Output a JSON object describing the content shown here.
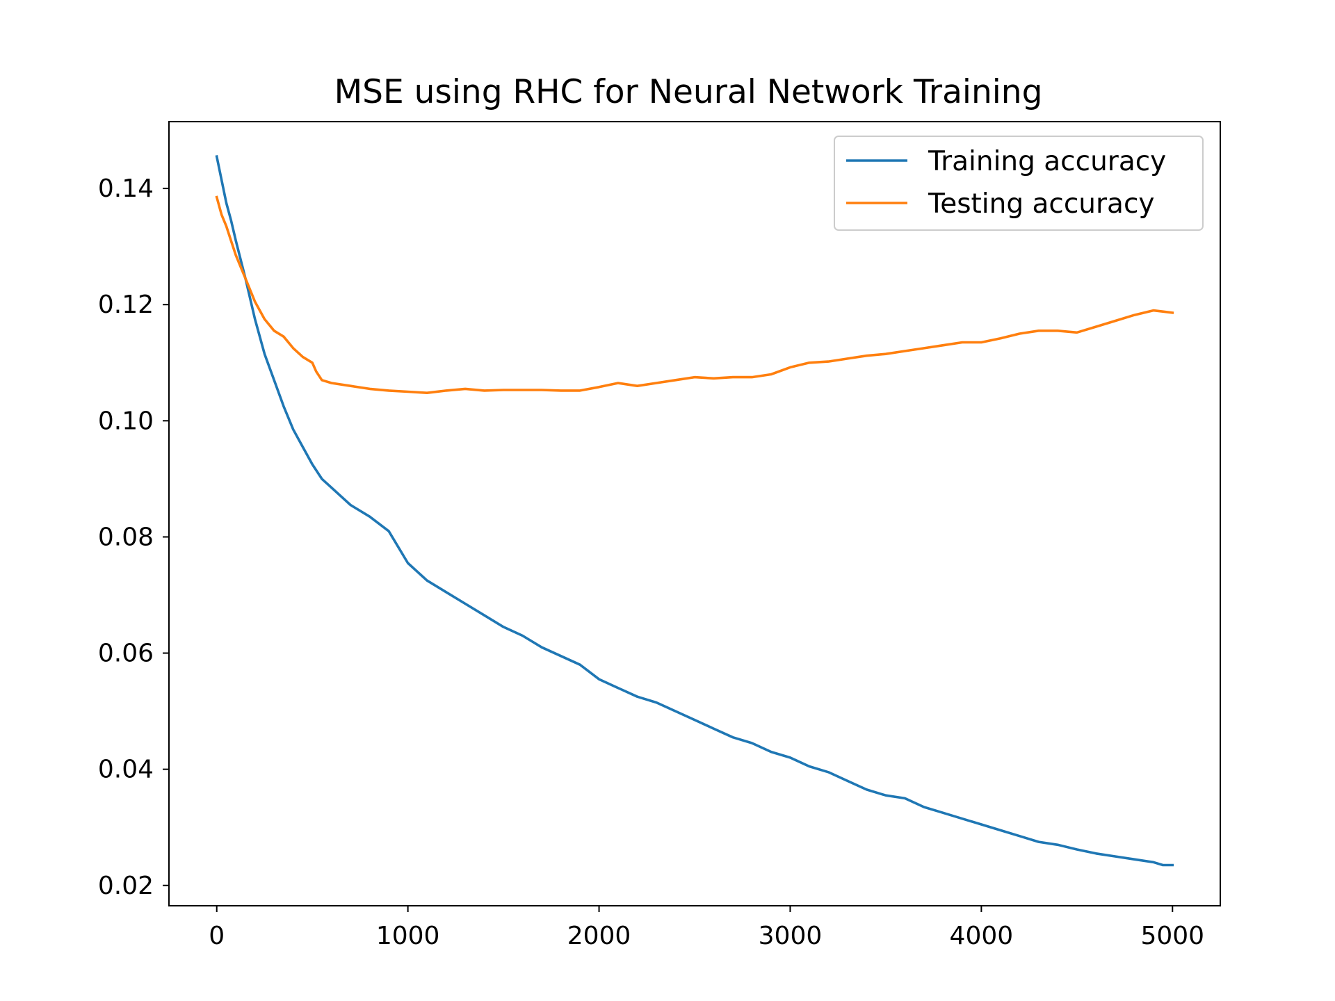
{
  "chart_data": {
    "type": "line",
    "title": "MSE using RHC for Neural Network Training",
    "xlabel": "",
    "ylabel": "",
    "xlim": [
      -250,
      5250
    ],
    "ylim": [
      0.0165,
      0.1515
    ],
    "xticks": [
      0,
      1000,
      2000,
      3000,
      4000,
      5000
    ],
    "xtick_labels": [
      "0",
      "1000",
      "2000",
      "3000",
      "4000",
      "5000"
    ],
    "yticks": [
      0.02,
      0.04,
      0.06,
      0.08,
      0.1,
      0.12,
      0.14
    ],
    "ytick_labels": [
      "0.02",
      "0.04",
      "0.06",
      "0.08",
      "0.10",
      "0.12",
      "0.14"
    ],
    "grid": false,
    "legend": "top-right",
    "series": [
      {
        "name": "Training accuracy",
        "color": "#1f77b4",
        "x": [
          0,
          25,
          50,
          75,
          100,
          150,
          200,
          250,
          300,
          350,
          400,
          450,
          500,
          550,
          600,
          650,
          700,
          800,
          900,
          1000,
          1100,
          1200,
          1300,
          1400,
          1500,
          1600,
          1700,
          1800,
          1900,
          2000,
          2100,
          2200,
          2300,
          2400,
          2500,
          2600,
          2700,
          2800,
          2900,
          3000,
          3100,
          3200,
          3300,
          3400,
          3500,
          3600,
          3700,
          3800,
          3900,
          4000,
          4100,
          4200,
          4300,
          4400,
          4500,
          4600,
          4700,
          4800,
          4900,
          4950,
          5000
        ],
        "y": [
          0.1455,
          0.1415,
          0.1375,
          0.1345,
          0.131,
          0.1245,
          0.1175,
          0.1115,
          0.107,
          0.1025,
          0.0985,
          0.0955,
          0.0925,
          0.09,
          0.0885,
          0.087,
          0.0855,
          0.0835,
          0.081,
          0.0755,
          0.0725,
          0.0705,
          0.0685,
          0.0665,
          0.0645,
          0.063,
          0.061,
          0.0595,
          0.058,
          0.0555,
          0.054,
          0.0525,
          0.0515,
          0.05,
          0.0485,
          0.047,
          0.0455,
          0.0445,
          0.043,
          0.042,
          0.0405,
          0.0395,
          0.038,
          0.0365,
          0.0355,
          0.035,
          0.0335,
          0.0325,
          0.0315,
          0.0305,
          0.0295,
          0.0285,
          0.0275,
          0.027,
          0.0262,
          0.0255,
          0.025,
          0.0245,
          0.024,
          0.0235,
          0.0235
        ]
      },
      {
        "name": "Testing accuracy",
        "color": "#ff7f0e",
        "x": [
          0,
          25,
          50,
          75,
          100,
          150,
          200,
          250,
          300,
          350,
          400,
          450,
          500,
          520,
          550,
          600,
          700,
          800,
          900,
          1000,
          1100,
          1200,
          1300,
          1400,
          1500,
          1600,
          1700,
          1800,
          1900,
          2000,
          2100,
          2200,
          2300,
          2400,
          2500,
          2600,
          2700,
          2800,
          2900,
          3000,
          3100,
          3200,
          3300,
          3400,
          3500,
          3600,
          3700,
          3800,
          3900,
          4000,
          4100,
          4200,
          4300,
          4400,
          4500,
          4600,
          4700,
          4800,
          4900,
          4950,
          5000
        ],
        "y": [
          0.1385,
          0.1355,
          0.1335,
          0.131,
          0.1285,
          0.1245,
          0.1205,
          0.1175,
          0.1155,
          0.1145,
          0.1125,
          0.111,
          0.11,
          0.1085,
          0.107,
          0.1065,
          0.106,
          0.1055,
          0.1052,
          0.105,
          0.1048,
          0.1052,
          0.1055,
          0.1052,
          0.1053,
          0.1053,
          0.1053,
          0.1052,
          0.1052,
          0.1058,
          0.1065,
          0.106,
          0.1065,
          0.107,
          0.1075,
          0.1073,
          0.1075,
          0.1075,
          0.108,
          0.1092,
          0.11,
          0.1102,
          0.1107,
          0.1112,
          0.1115,
          0.112,
          0.1125,
          0.113,
          0.1135,
          0.1135,
          0.1142,
          0.115,
          0.1155,
          0.1155,
          0.1152,
          0.1162,
          0.1172,
          0.1182,
          0.119,
          0.1188,
          0.1186
        ]
      }
    ]
  }
}
